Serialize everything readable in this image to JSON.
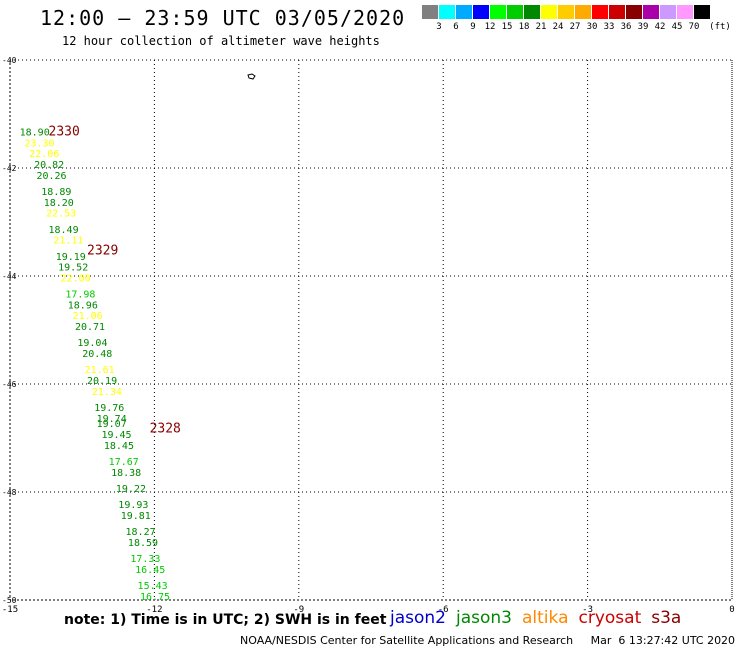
{
  "header": {
    "title": "12:00 – 23:59 UTC 03/05/2020",
    "subtitle": "12 hour collection of altimeter wave heights"
  },
  "legend": {
    "colors": [
      "#808080",
      "#00ffff",
      "#00aaff",
      "#0000ff",
      "#00ff00",
      "#00cc00",
      "#008800",
      "#ffff00",
      "#ffcc00",
      "#ffaa00",
      "#ff0000",
      "#cc0000",
      "#880000",
      "#aa00aa",
      "#cc99ff",
      "#ff99ff",
      "#000000"
    ],
    "ticks": [
      "3",
      "6",
      "9",
      "12",
      "15",
      "18",
      "21",
      "24",
      "27",
      "30",
      "33",
      "36",
      "39",
      "42",
      "45",
      "70"
    ],
    "unit": "(ft)"
  },
  "map": {
    "lat_labels": [
      "-40",
      "-42",
      "-44",
      "-46",
      "-48",
      "-50"
    ],
    "lon_labels": [
      "-15",
      "-12",
      "-9",
      "-6",
      "-3",
      "0"
    ],
    "pass_labels": [
      {
        "text": "2330",
        "lon": -14.2,
        "lat": -41.4,
        "color": "#880000"
      },
      {
        "text": "2329",
        "lon": -13.4,
        "lat": -43.6,
        "color": "#880000"
      },
      {
        "text": "2328",
        "lon": -12.1,
        "lat": -46.9,
        "color": "#880000"
      }
    ],
    "wave_heights": [
      {
        "v": "18.90",
        "lon": -14.8,
        "lat": -41.4,
        "color": "#008800"
      },
      {
        "v": "23.30",
        "lon": -14.7,
        "lat": -41.6,
        "color": "#ffff00"
      },
      {
        "v": "22.06",
        "lon": -14.6,
        "lat": -41.8,
        "color": "#ffff00"
      },
      {
        "v": "20.82",
        "lon": -14.5,
        "lat": -42.0,
        "color": "#008800"
      },
      {
        "v": "20.26",
        "lon": -14.45,
        "lat": -42.2,
        "color": "#008800"
      },
      {
        "v": "18.89",
        "lon": -14.35,
        "lat": -42.5,
        "color": "#008800"
      },
      {
        "v": "18.20",
        "lon": -14.3,
        "lat": -42.7,
        "color": "#008800"
      },
      {
        "v": "22.53",
        "lon": -14.25,
        "lat": -42.9,
        "color": "#ffff00"
      },
      {
        "v": "18.49",
        "lon": -14.2,
        "lat": -43.2,
        "color": "#008800"
      },
      {
        "v": "21.11",
        "lon": -14.1,
        "lat": -43.4,
        "color": "#ffff00"
      },
      {
        "v": "19.19",
        "lon": -14.05,
        "lat": -43.7,
        "color": "#008800"
      },
      {
        "v": "19.52",
        "lon": -14.0,
        "lat": -43.9,
        "color": "#008800"
      },
      {
        "v": "22.00",
        "lon": -13.95,
        "lat": -44.1,
        "color": "#ffff00"
      },
      {
        "v": "17.98",
        "lon": -13.85,
        "lat": -44.4,
        "color": "#00cc00"
      },
      {
        "v": "18.96",
        "lon": -13.8,
        "lat": -44.6,
        "color": "#008800"
      },
      {
        "v": "21.06",
        "lon": -13.7,
        "lat": -44.8,
        "color": "#ffff00"
      },
      {
        "v": "20.71",
        "lon": -13.65,
        "lat": -45.0,
        "color": "#008800"
      },
      {
        "v": "19.04",
        "lon": -13.6,
        "lat": -45.3,
        "color": "#008800"
      },
      {
        "v": "20.48",
        "lon": -13.5,
        "lat": -45.5,
        "color": "#008800"
      },
      {
        "v": "21.61",
        "lon": -13.45,
        "lat": -45.8,
        "color": "#ffff00"
      },
      {
        "v": "20.19",
        "lon": -13.4,
        "lat": -46.0,
        "color": "#008800"
      },
      {
        "v": "21.34",
        "lon": -13.3,
        "lat": -46.2,
        "color": "#ffff00"
      },
      {
        "v": "19.76",
        "lon": -13.25,
        "lat": -46.5,
        "color": "#008800"
      },
      {
        "v": "19.74",
        "lon": -13.2,
        "lat": -46.7,
        "color": "#008800"
      },
      {
        "v": "19.07",
        "lon": -13.2,
        "lat": -46.8,
        "color": "#008800"
      },
      {
        "v": "19.45",
        "lon": -13.1,
        "lat": -47.0,
        "color": "#008800"
      },
      {
        "v": "18.45",
        "lon": -13.05,
        "lat": -47.2,
        "color": "#008800"
      },
      {
        "v": "17.67",
        "lon": -12.95,
        "lat": -47.5,
        "color": "#00cc00"
      },
      {
        "v": "18.38",
        "lon": -12.9,
        "lat": -47.7,
        "color": "#008800"
      },
      {
        "v": "19.22",
        "lon": -12.8,
        "lat": -48.0,
        "color": "#008800"
      },
      {
        "v": "19.93",
        "lon": -12.75,
        "lat": -48.3,
        "color": "#008800"
      },
      {
        "v": "19.81",
        "lon": -12.7,
        "lat": -48.5,
        "color": "#008800"
      },
      {
        "v": "18.27",
        "lon": -12.6,
        "lat": -48.8,
        "color": "#008800"
      },
      {
        "v": "18.59",
        "lon": -12.55,
        "lat": -49.0,
        "color": "#008800"
      },
      {
        "v": "17.33",
        "lon": -12.5,
        "lat": -49.3,
        "color": "#00cc00"
      },
      {
        "v": "16.45",
        "lon": -12.4,
        "lat": -49.5,
        "color": "#00cc00"
      },
      {
        "v": "15.43",
        "lon": -12.35,
        "lat": -49.8,
        "color": "#00cc00"
      },
      {
        "v": "16.75",
        "lon": -12.3,
        "lat": -50.0,
        "color": "#00cc00"
      }
    ]
  },
  "note": "note: 1) Time is in UTC; 2) SWH is in feet",
  "satellites": [
    {
      "name": "jason2",
      "color": "#0000cc"
    },
    {
      "name": "jason3",
      "color": "#008800"
    },
    {
      "name": "altika",
      "color": "#ff8800"
    },
    {
      "name": "cryosat",
      "color": "#cc0000"
    },
    {
      "name": "s3a",
      "color": "#880000"
    }
  ],
  "footer": "NOAA/NESDIS Center for Satellite Applications and Research     Mar  6 13:27:42 UTC 2020"
}
